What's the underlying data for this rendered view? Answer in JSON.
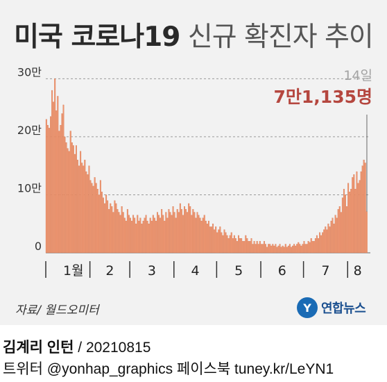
{
  "title": {
    "strong": "미국 코로나19",
    "light": "신규 확진자 추이"
  },
  "colors": {
    "bar": "#f0956e",
    "bar_edge": "#c96a45",
    "grid": "#9a9a9a",
    "accent": "#b5473f",
    "callout_date": "#a3a3a3"
  },
  "callout": {
    "date": "14일",
    "value": "7만1,135명"
  },
  "source": "자료/ 월드오미터",
  "logo": {
    "mark": "Y",
    "name": "연합뉴스"
  },
  "footer": {
    "author": "김계리 인턴",
    "date": "20210815",
    "line2": "트위터 @yonhap_graphics  페이스북 tuney.kr/LeYN1"
  },
  "chart_data": {
    "type": "bar",
    "ylim": [
      0,
      310000
    ],
    "yticks": [
      {
        "v": 0,
        "label": "0"
      },
      {
        "v": 100000,
        "label": "10만"
      },
      {
        "v": 200000,
        "label": "20만"
      },
      {
        "v": 300000,
        "label": "30만"
      }
    ],
    "grid": true,
    "months": [
      {
        "label": "1월",
        "days": 31
      },
      {
        "label": "2",
        "days": 28
      },
      {
        "label": "3",
        "days": 31
      },
      {
        "label": "4",
        "days": 30
      },
      {
        "label": "5",
        "days": 31
      },
      {
        "label": "6",
        "days": 30
      },
      {
        "label": "7",
        "days": 31
      },
      {
        "label": "8",
        "days": 14
      }
    ],
    "highlight_index": 225,
    "values": [
      230000,
      220000,
      215000,
      235000,
      280000,
      260000,
      300000,
      245000,
      270000,
      210000,
      220000,
      240000,
      255000,
      200000,
      190000,
      180000,
      175000,
      210000,
      190000,
      185000,
      170000,
      185000,
      160000,
      150000,
      175000,
      155000,
      150000,
      160000,
      140000,
      135000,
      150000,
      125000,
      120000,
      115000,
      130000,
      120000,
      110000,
      100000,
      125000,
      105000,
      95000,
      85000,
      100000,
      90000,
      75000,
      85000,
      80000,
      70000,
      90000,
      85000,
      75000,
      70000,
      65000,
      80000,
      70000,
      60000,
      55000,
      75000,
      65000,
      60000,
      55000,
      65000,
      60000,
      50000,
      65000,
      55000,
      60000,
      50000,
      55000,
      60000,
      65000,
      55000,
      50000,
      60000,
      55000,
      65000,
      60000,
      55000,
      70000,
      65000,
      60000,
      75000,
      65000,
      55000,
      70000,
      60000,
      75000,
      70000,
      65000,
      80000,
      70000,
      60000,
      75000,
      70000,
      85000,
      75000,
      65000,
      80000,
      75000,
      70000,
      85000,
      80000,
      65000,
      75000,
      70000,
      60000,
      70000,
      65000,
      60000,
      55000,
      60000,
      65000,
      55000,
      50000,
      55000,
      45000,
      45000,
      50000,
      40000,
      45000,
      35000,
      40000,
      45000,
      35000,
      30000,
      40000,
      35000,
      30000,
      25000,
      30000,
      35000,
      25000,
      30000,
      25000,
      20000,
      30000,
      25000,
      25000,
      20000,
      20000,
      30000,
      25000,
      20000,
      20000,
      25000,
      15000,
      20000,
      15000,
      20000,
      15000,
      20000,
      15000,
      15000,
      20000,
      15000,
      10000,
      15000,
      15000,
      12000,
      15000,
      12000,
      15000,
      10000,
      12000,
      15000,
      10000,
      12000,
      10000,
      15000,
      10000,
      12000,
      15000,
      10000,
      12000,
      15000,
      12000,
      15000,
      18000,
      15000,
      12000,
      15000,
      20000,
      15000,
      15000,
      20000,
      18000,
      25000,
      20000,
      20000,
      25000,
      30000,
      25000,
      35000,
      30000,
      35000,
      40000,
      45000,
      40000,
      50000,
      45000,
      55000,
      60000,
      50000,
      65000,
      60000,
      75000,
      80000,
      70000,
      95000,
      110000,
      100000,
      80000,
      120000,
      105000,
      110000,
      130000,
      135000,
      110000,
      140000,
      120000,
      125000,
      140000,
      150000,
      160000,
      155000,
      71135
    ]
  }
}
